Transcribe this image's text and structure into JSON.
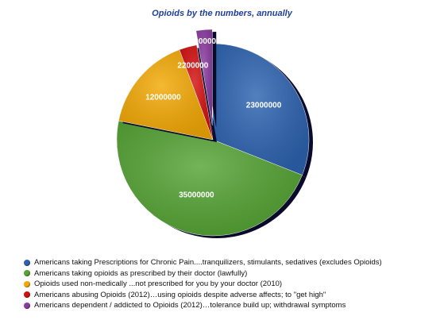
{
  "chart_data": {
    "type": "pie",
    "title": "Opioids by the numbers, annually",
    "categories": [
      "Americans taking Prescriptions for Chronic Pain....tranquilizers, stimulants, sedatives (excludes Opioids)",
      "Americans taking opioids as prescribed by their doctor (lawfully)",
      "Opioids used non-medically ...not prescribed for you by your doctor (2010)",
      "Americans abusing Opioids (2012)…using opioids despite adverse affects; to \"get high\"",
      "Americans dependent / addicted to Opioids (2012)…tolerance build up; withdrawal symptoms"
    ],
    "values": [
      23000000,
      35000000,
      12000000,
      2200000,
      2000000
    ],
    "value_labels": [
      "23000000",
      "35000000",
      "12000000",
      "2200000",
      "2000000"
    ],
    "colors": [
      "#2d63b0",
      "#55a435",
      "#f3a905",
      "#d40f0f",
      "#8a3aa0"
    ],
    "legend_position": "bottom-left",
    "exploded": [
      false,
      false,
      false,
      false,
      true
    ]
  }
}
